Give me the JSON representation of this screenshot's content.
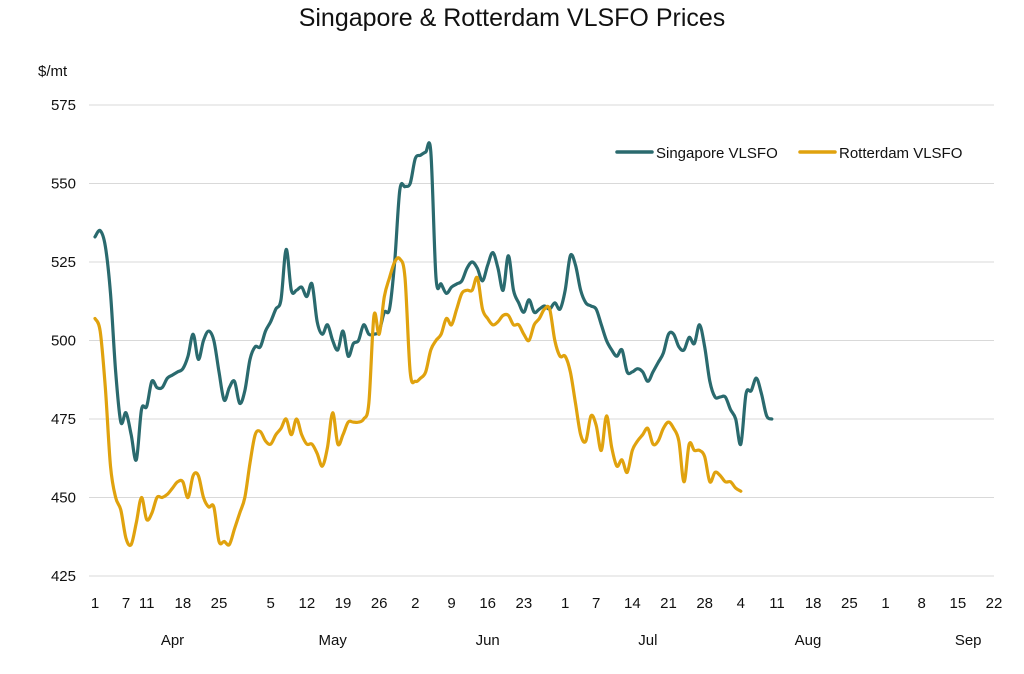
{
  "chart_data": {
    "type": "line",
    "title": "Singapore & Rotterdam VLSFO Prices",
    "ylabel": "$/mt",
    "ylim": [
      425,
      575
    ],
    "yticks": [
      425,
      450,
      475,
      500,
      525,
      550,
      575
    ],
    "grid": true,
    "legend_position": "top-right",
    "x_start": 1,
    "x_end": 175,
    "x_tick_labels": [
      {
        "x": 1,
        "label": "1"
      },
      {
        "x": 7,
        "label": "7"
      },
      {
        "x": 11,
        "label": "11"
      },
      {
        "x": 18,
        "label": "18"
      },
      {
        "x": 25,
        "label": "25"
      },
      {
        "x": 35,
        "label": "5"
      },
      {
        "x": 42,
        "label": "12"
      },
      {
        "x": 49,
        "label": "19"
      },
      {
        "x": 56,
        "label": "26"
      },
      {
        "x": 63,
        "label": "2"
      },
      {
        "x": 70,
        "label": "9"
      },
      {
        "x": 77,
        "label": "16"
      },
      {
        "x": 84,
        "label": "23"
      },
      {
        "x": 92,
        "label": "1"
      },
      {
        "x": 98,
        "label": "7"
      },
      {
        "x": 105,
        "label": "14"
      },
      {
        "x": 112,
        "label": "21"
      },
      {
        "x": 119,
        "label": "28"
      },
      {
        "x": 126,
        "label": "4"
      },
      {
        "x": 133,
        "label": "11"
      },
      {
        "x": 140,
        "label": "18"
      },
      {
        "x": 147,
        "label": "25"
      },
      {
        "x": 154,
        "label": "1"
      },
      {
        "x": 161,
        "label": "8"
      },
      {
        "x": 168,
        "label": "15"
      },
      {
        "x": 175,
        "label": "22"
      }
    ],
    "month_labels": [
      {
        "x": 16,
        "label": "Apr"
      },
      {
        "x": 47,
        "label": "May"
      },
      {
        "x": 77,
        "label": "Jun"
      },
      {
        "x": 108,
        "label": "Jul"
      },
      {
        "x": 139,
        "label": "Aug"
      },
      {
        "x": 170,
        "label": "Sep"
      }
    ],
    "series": [
      {
        "name": "Singapore VLSFO",
        "color": "#2a6a6e",
        "points": [
          [
            1,
            533
          ],
          [
            2,
            535
          ],
          [
            3,
            530
          ],
          [
            4,
            515
          ],
          [
            5,
            490
          ],
          [
            6,
            474
          ],
          [
            7,
            477
          ],
          [
            8,
            470
          ],
          [
            9,
            462
          ],
          [
            10,
            478
          ],
          [
            11,
            479
          ],
          [
            12,
            487
          ],
          [
            13,
            485
          ],
          [
            14,
            485
          ],
          [
            15,
            488
          ],
          [
            16,
            489
          ],
          [
            17,
            490
          ],
          [
            18,
            491
          ],
          [
            19,
            495
          ],
          [
            20,
            502
          ],
          [
            21,
            494
          ],
          [
            22,
            500
          ],
          [
            23,
            503
          ],
          [
            24,
            500
          ],
          [
            25,
            490
          ],
          [
            26,
            481
          ],
          [
            27,
            485
          ],
          [
            28,
            487
          ],
          [
            29,
            480
          ],
          [
            30,
            484
          ],
          [
            31,
            494
          ],
          [
            32,
            498
          ],
          [
            33,
            498
          ],
          [
            34,
            503
          ],
          [
            35,
            506
          ],
          [
            36,
            510
          ],
          [
            37,
            513
          ],
          [
            38,
            529
          ],
          [
            39,
            516
          ],
          [
            40,
            516
          ],
          [
            41,
            517
          ],
          [
            42,
            514
          ],
          [
            43,
            518
          ],
          [
            44,
            506
          ],
          [
            45,
            502
          ],
          [
            46,
            505
          ],
          [
            47,
            500
          ],
          [
            48,
            497
          ],
          [
            49,
            503
          ],
          [
            50,
            495
          ],
          [
            51,
            499
          ],
          [
            52,
            500
          ],
          [
            53,
            505
          ],
          [
            54,
            502
          ],
          [
            55,
            502
          ],
          [
            56,
            503
          ],
          [
            57,
            509
          ],
          [
            58,
            510
          ],
          [
            59,
            525
          ],
          [
            60,
            548
          ],
          [
            61,
            549
          ],
          [
            62,
            550
          ],
          [
            63,
            558
          ],
          [
            64,
            559
          ],
          [
            65,
            560
          ],
          [
            66,
            560
          ],
          [
            67,
            520
          ],
          [
            68,
            518
          ],
          [
            69,
            515
          ],
          [
            70,
            517
          ],
          [
            71,
            518
          ],
          [
            72,
            519
          ],
          [
            73,
            523
          ],
          [
            74,
            525
          ],
          [
            75,
            523
          ],
          [
            76,
            519
          ],
          [
            77,
            524
          ],
          [
            78,
            528
          ],
          [
            79,
            523
          ],
          [
            80,
            516
          ],
          [
            81,
            527
          ],
          [
            82,
            516
          ],
          [
            83,
            512
          ],
          [
            84,
            509
          ],
          [
            85,
            513
          ],
          [
            86,
            509
          ],
          [
            87,
            510
          ],
          [
            88,
            511
          ],
          [
            89,
            510
          ],
          [
            90,
            512
          ],
          [
            91,
            510
          ],
          [
            92,
            516
          ],
          [
            93,
            527
          ],
          [
            94,
            524
          ],
          [
            95,
            516
          ],
          [
            96,
            512
          ],
          [
            97,
            511
          ],
          [
            98,
            510
          ],
          [
            99,
            505
          ],
          [
            100,
            500
          ],
          [
            101,
            497
          ],
          [
            102,
            495
          ],
          [
            103,
            497
          ],
          [
            104,
            490
          ],
          [
            105,
            490
          ],
          [
            106,
            491
          ],
          [
            107,
            490
          ],
          [
            108,
            487
          ],
          [
            109,
            490
          ],
          [
            110,
            493
          ],
          [
            111,
            496
          ],
          [
            112,
            502
          ],
          [
            113,
            502
          ],
          [
            114,
            498
          ],
          [
            115,
            497
          ],
          [
            116,
            501
          ],
          [
            117,
            499
          ],
          [
            118,
            505
          ],
          [
            119,
            498
          ],
          [
            120,
            487
          ],
          [
            121,
            482
          ],
          [
            122,
            482
          ],
          [
            123,
            482
          ],
          [
            124,
            478
          ],
          [
            125,
            475
          ],
          [
            126,
            467
          ],
          [
            127,
            483
          ],
          [
            128,
            484
          ],
          [
            129,
            488
          ],
          [
            130,
            483
          ],
          [
            131,
            476
          ],
          [
            132,
            475
          ]
        ]
      },
      {
        "name": "Rotterdam VLSFO",
        "color": "#e0a20e",
        "points": [
          [
            1,
            507
          ],
          [
            2,
            503
          ],
          [
            3,
            485
          ],
          [
            4,
            460
          ],
          [
            5,
            450
          ],
          [
            6,
            446
          ],
          [
            7,
            437
          ],
          [
            8,
            435
          ],
          [
            9,
            442
          ],
          [
            10,
            450
          ],
          [
            11,
            443
          ],
          [
            12,
            445
          ],
          [
            13,
            450
          ],
          [
            14,
            450
          ],
          [
            15,
            451
          ],
          [
            16,
            453
          ],
          [
            17,
            455
          ],
          [
            18,
            455
          ],
          [
            19,
            450
          ],
          [
            20,
            457
          ],
          [
            21,
            457
          ],
          [
            22,
            450
          ],
          [
            23,
            447
          ],
          [
            24,
            447
          ],
          [
            25,
            436
          ],
          [
            26,
            436
          ],
          [
            27,
            435
          ],
          [
            28,
            440
          ],
          [
            29,
            445
          ],
          [
            30,
            450
          ],
          [
            31,
            461
          ],
          [
            32,
            470
          ],
          [
            33,
            471
          ],
          [
            34,
            468
          ],
          [
            35,
            467
          ],
          [
            36,
            470
          ],
          [
            37,
            472
          ],
          [
            38,
            475
          ],
          [
            39,
            470
          ],
          [
            40,
            475
          ],
          [
            41,
            470
          ],
          [
            42,
            467
          ],
          [
            43,
            467
          ],
          [
            44,
            464
          ],
          [
            45,
            460
          ],
          [
            46,
            466
          ],
          [
            47,
            477
          ],
          [
            48,
            467
          ],
          [
            49,
            470
          ],
          [
            50,
            474
          ],
          [
            51,
            474
          ],
          [
            52,
            474
          ],
          [
            53,
            475
          ],
          [
            54,
            480
          ],
          [
            55,
            508
          ],
          [
            56,
            502
          ],
          [
            57,
            514
          ],
          [
            58,
            520
          ],
          [
            59,
            525
          ],
          [
            60,
            526
          ],
          [
            61,
            520
          ],
          [
            62,
            490
          ],
          [
            63,
            487
          ],
          [
            64,
            488
          ],
          [
            65,
            490
          ],
          [
            66,
            497
          ],
          [
            67,
            500
          ],
          [
            68,
            502
          ],
          [
            69,
            507
          ],
          [
            70,
            505
          ],
          [
            71,
            510
          ],
          [
            72,
            515
          ],
          [
            73,
            516
          ],
          [
            74,
            516
          ],
          [
            75,
            520
          ],
          [
            76,
            510
          ],
          [
            77,
            507
          ],
          [
            78,
            505
          ],
          [
            79,
            506
          ],
          [
            80,
            508
          ],
          [
            81,
            508
          ],
          [
            82,
            505
          ],
          [
            83,
            505
          ],
          [
            84,
            502
          ],
          [
            85,
            500
          ],
          [
            86,
            505
          ],
          [
            87,
            507
          ],
          [
            88,
            510
          ],
          [
            89,
            510
          ],
          [
            90,
            500
          ],
          [
            91,
            495
          ],
          [
            92,
            495
          ],
          [
            93,
            490
          ],
          [
            94,
            480
          ],
          [
            95,
            470
          ],
          [
            96,
            468
          ],
          [
            97,
            476
          ],
          [
            98,
            473
          ],
          [
            99,
            465
          ],
          [
            100,
            476
          ],
          [
            101,
            466
          ],
          [
            102,
            460
          ],
          [
            103,
            462
          ],
          [
            104,
            458
          ],
          [
            105,
            465
          ],
          [
            106,
            468
          ],
          [
            107,
            470
          ],
          [
            108,
            472
          ],
          [
            109,
            467
          ],
          [
            110,
            468
          ],
          [
            111,
            472
          ],
          [
            112,
            474
          ],
          [
            113,
            472
          ],
          [
            114,
            468
          ],
          [
            115,
            455
          ],
          [
            116,
            467
          ],
          [
            117,
            465
          ],
          [
            118,
            465
          ],
          [
            119,
            463
          ],
          [
            120,
            455
          ],
          [
            121,
            458
          ],
          [
            122,
            457
          ],
          [
            123,
            455
          ],
          [
            124,
            455
          ],
          [
            125,
            453
          ],
          [
            126,
            452
          ]
        ]
      }
    ]
  }
}
